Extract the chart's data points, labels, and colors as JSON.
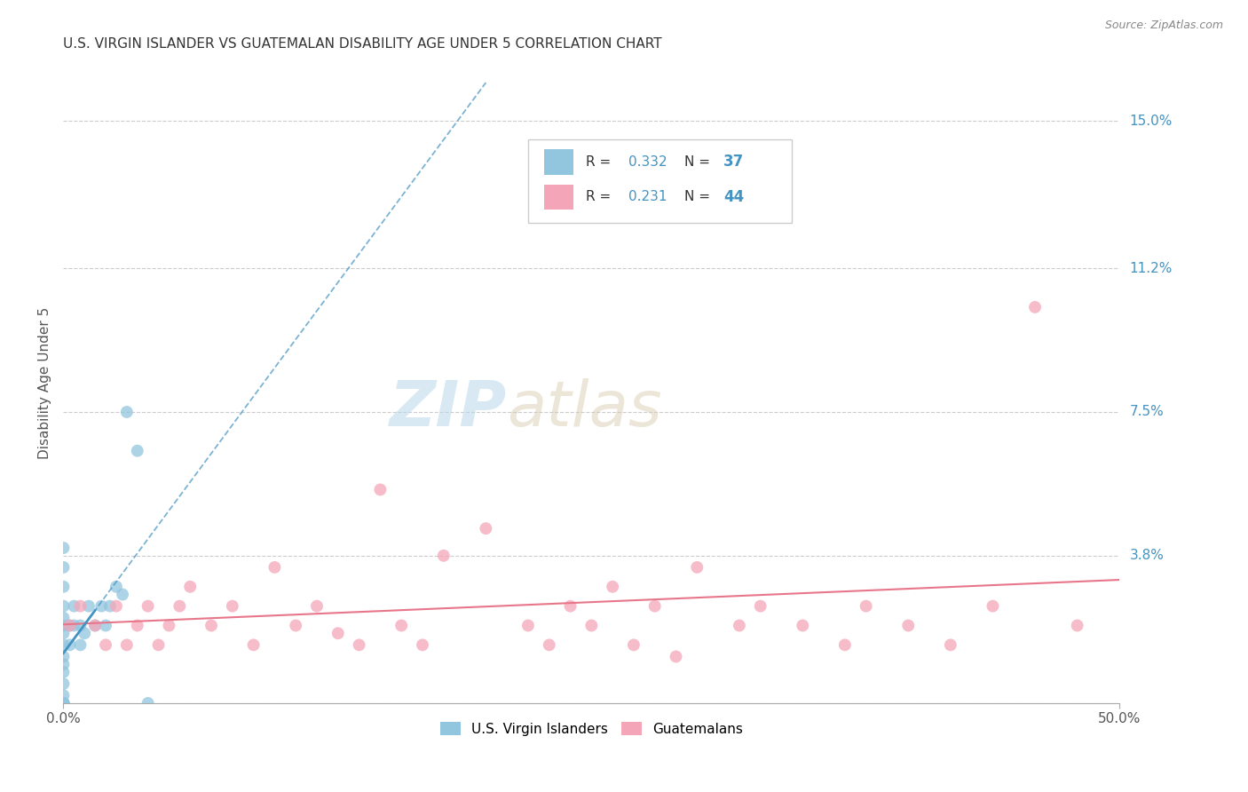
{
  "title": "U.S. VIRGIN ISLANDER VS GUATEMALAN DISABILITY AGE UNDER 5 CORRELATION CHART",
  "source": "Source: ZipAtlas.com",
  "ylabel": "Disability Age Under 5",
  "ytick_values": [
    0.0,
    3.8,
    7.5,
    11.2,
    15.0
  ],
  "ytick_labels": [
    "0.0%",
    "3.8%",
    "7.5%",
    "11.2%",
    "15.0%"
  ],
  "xlim": [
    0.0,
    50.0
  ],
  "ylim": [
    0.0,
    16.5
  ],
  "legend_r1": "0.332",
  "legend_n1": "37",
  "legend_r2": "0.231",
  "legend_n2": "44",
  "color_blue": "#92c5de",
  "color_pink": "#f4a6b8",
  "color_blue_text": "#4393c3",
  "color_pink_text": "#d6604d",
  "color_trendline_blue": "#4393c3",
  "color_trendline_pink": "#e8768a",
  "watermark_zip": "ZIP",
  "watermark_atlas": "atlas",
  "blue_x": [
    0.0,
    0.0,
    0.0,
    0.0,
    0.0,
    0.0,
    0.0,
    0.0,
    0.0,
    0.0,
    0.0,
    0.0,
    0.0,
    0.0,
    0.0,
    0.0,
    0.0,
    0.0,
    0.0,
    0.0,
    0.3,
    0.3,
    0.5,
    0.5,
    0.8,
    0.8,
    1.0,
    1.2,
    1.5,
    1.8,
    2.0,
    2.2,
    2.5,
    2.8,
    3.0,
    3.5,
    4.0
  ],
  "blue_y": [
    0.0,
    0.0,
    0.0,
    0.0,
    0.0,
    0.0,
    0.0,
    0.2,
    0.5,
    0.8,
    1.0,
    1.2,
    1.5,
    1.8,
    2.0,
    2.2,
    2.5,
    3.0,
    3.5,
    4.0,
    1.5,
    2.0,
    2.0,
    2.5,
    1.5,
    2.0,
    1.8,
    2.5,
    2.0,
    2.5,
    2.0,
    2.5,
    3.0,
    2.8,
    7.5,
    6.5,
    0.0
  ],
  "pink_x": [
    0.3,
    0.8,
    1.5,
    2.0,
    2.5,
    3.0,
    3.5,
    4.0,
    4.5,
    5.0,
    5.5,
    6.0,
    7.0,
    8.0,
    9.0,
    10.0,
    11.0,
    12.0,
    13.0,
    14.0,
    15.0,
    16.0,
    17.0,
    18.0,
    20.0,
    22.0,
    23.0,
    24.0,
    25.0,
    26.0,
    27.0,
    28.0,
    29.0,
    30.0,
    32.0,
    33.0,
    35.0,
    37.0,
    38.0,
    40.0,
    42.0,
    44.0,
    46.0,
    48.0
  ],
  "pink_y": [
    2.0,
    2.5,
    2.0,
    1.5,
    2.5,
    1.5,
    2.0,
    2.5,
    1.5,
    2.0,
    2.5,
    3.0,
    2.0,
    2.5,
    1.5,
    3.5,
    2.0,
    2.5,
    1.8,
    1.5,
    5.5,
    2.0,
    1.5,
    3.8,
    4.5,
    2.0,
    1.5,
    2.5,
    2.0,
    3.0,
    1.5,
    2.5,
    1.2,
    3.5,
    2.0,
    2.5,
    2.0,
    1.5,
    2.5,
    2.0,
    1.5,
    2.5,
    10.2,
    2.0
  ]
}
